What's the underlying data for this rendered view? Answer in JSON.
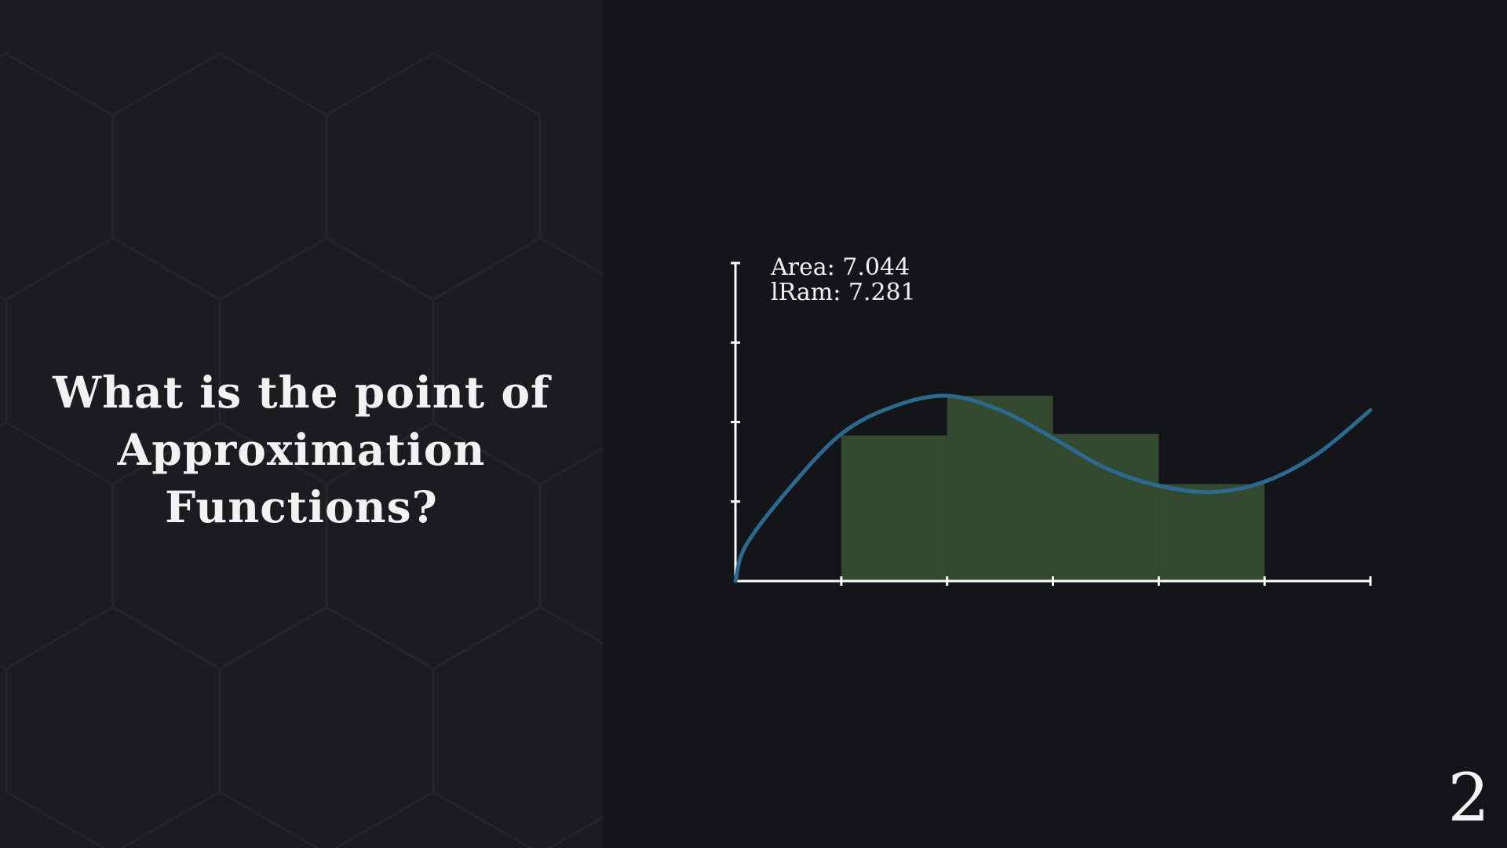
{
  "slide": {
    "title_lines": [
      "What is the point of",
      "Approximation Functions?"
    ],
    "page_number": "2"
  },
  "colors": {
    "background": "#131519",
    "left_panel": "#1a1c20",
    "hex_lines": "#22252a",
    "axis": "#ffffff",
    "curve": "#2b6a8e",
    "rectangles": "#344a30",
    "text": "#f2f2f2"
  },
  "chart_data": {
    "type": "area",
    "annotations": [
      "Area: 7.044",
      "lRam: 7.281"
    ],
    "xlim": [
      0,
      6
    ],
    "ylim": [
      0,
      4
    ],
    "x_ticks": [
      1,
      2,
      3,
      4,
      5,
      6
    ],
    "y_ticks": [
      1,
      2,
      3,
      4
    ],
    "curve_points": [
      {
        "x": 0.0,
        "y": 0.0
      },
      {
        "x": 0.1,
        "y": 0.45
      },
      {
        "x": 0.5,
        "y": 1.15
      },
      {
        "x": 1.0,
        "y": 1.85
      },
      {
        "x": 1.5,
        "y": 2.2
      },
      {
        "x": 2.0,
        "y": 2.33
      },
      {
        "x": 2.5,
        "y": 2.15
      },
      {
        "x": 3.0,
        "y": 1.8
      },
      {
        "x": 3.5,
        "y": 1.42
      },
      {
        "x": 4.0,
        "y": 1.2
      },
      {
        "x": 4.5,
        "y": 1.12
      },
      {
        "x": 5.0,
        "y": 1.25
      },
      {
        "x": 5.5,
        "y": 1.6
      },
      {
        "x": 6.0,
        "y": 2.15
      }
    ],
    "rectangles": [
      {
        "x0": 1,
        "x1": 2,
        "height": 1.83
      },
      {
        "x0": 2,
        "x1": 3,
        "height": 2.33
      },
      {
        "x0": 3,
        "x1": 4,
        "height": 1.85
      },
      {
        "x0": 4,
        "x1": 5,
        "height": 1.22
      }
    ],
    "grid": false
  }
}
